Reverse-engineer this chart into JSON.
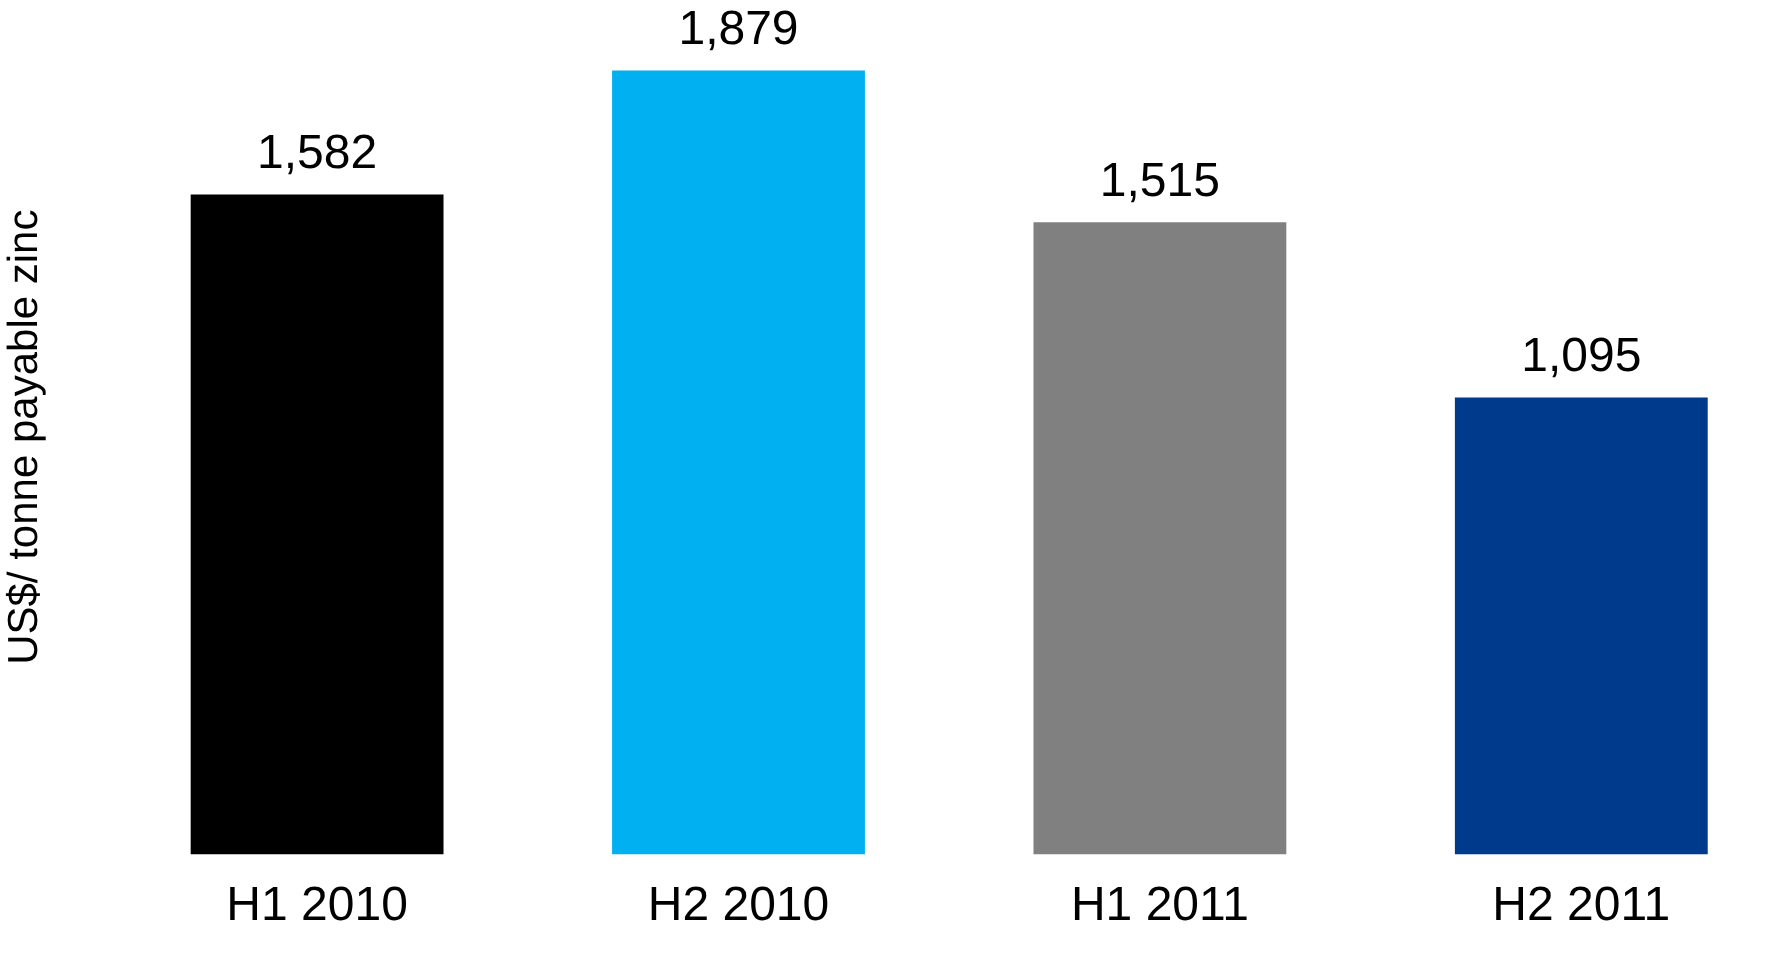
{
  "chart_data": {
    "type": "bar",
    "ylabel": "US$/ tonne payable zinc",
    "categories": [
      "H1 2010",
      "H2 2010",
      "H1 2011",
      "H2 2011"
    ],
    "values": [
      1582,
      1879,
      1515,
      1095
    ],
    "value_labels": [
      "1,582",
      "1,879",
      "1,515",
      "1,095"
    ],
    "colors": [
      "#000000",
      "#00b0f0",
      "#808080",
      "#003a8c"
    ],
    "grid": false,
    "legend": false
  }
}
